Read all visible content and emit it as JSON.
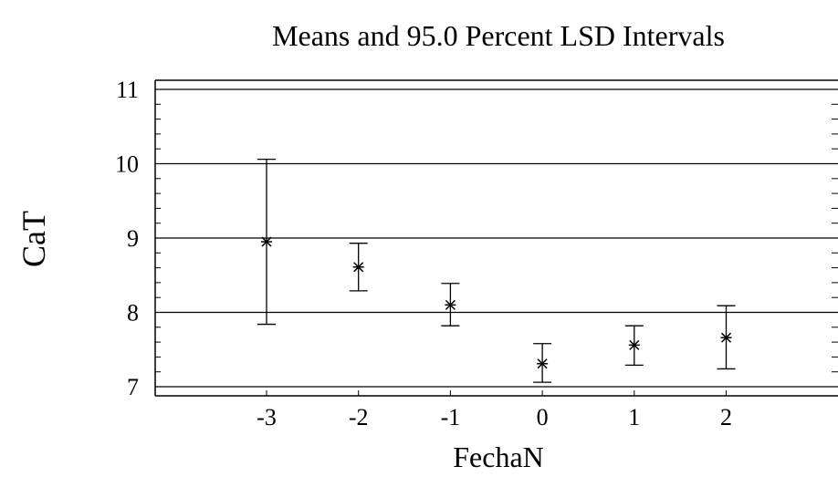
{
  "chart_data": {
    "type": "scatter",
    "title": "Means and 95.0 Percent LSD Intervals",
    "xlabel": "FechaN",
    "ylabel": "CaT",
    "ylim": [
      7,
      11
    ],
    "xlim": [
      -4,
      3
    ],
    "grid": "horizontal",
    "y_ticks": [
      "7",
      "8",
      "9",
      "10",
      "11"
    ],
    "x_ticks": [
      "-3",
      "-2",
      "-1",
      "0",
      "1",
      "2"
    ],
    "x_tick_values": [
      -3,
      -2,
      -1,
      0,
      1,
      2
    ],
    "y_tick_values": [
      7,
      8,
      9,
      10,
      11
    ],
    "points": [
      {
        "x": -3,
        "mean": 8.95,
        "lower": 7.84,
        "upper": 10.06
      },
      {
        "x": -2,
        "mean": 8.61,
        "lower": 8.29,
        "upper": 8.93
      },
      {
        "x": -1,
        "mean": 8.1,
        "lower": 7.82,
        "upper": 8.39
      },
      {
        "x": 0,
        "mean": 7.31,
        "lower": 7.06,
        "upper": 7.58
      },
      {
        "x": 1,
        "mean": 7.56,
        "lower": 7.29,
        "upper": 7.82
      },
      {
        "x": 2,
        "mean": 7.66,
        "lower": 7.24,
        "upper": 8.09
      }
    ]
  }
}
